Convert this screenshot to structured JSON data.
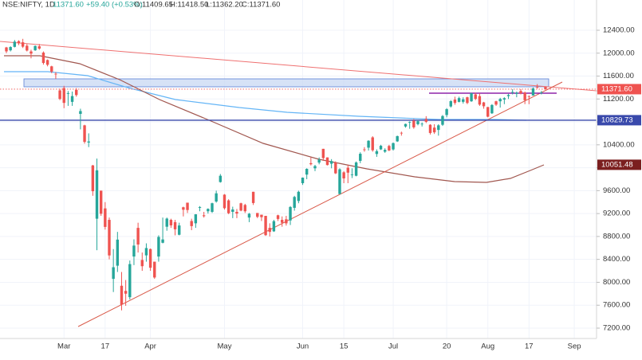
{
  "header": {
    "symbol": "NSE:NIFTY, 1D",
    "last": "11371.60",
    "change": "+59.40 (+0.53%)",
    "open": "O:11409.65",
    "high": "H:11418.50",
    "low": "L:11362.20",
    "close": "C:11371.60"
  },
  "chart_data": {
    "type": "candlestick",
    "categories": [
      null,
      null,
      null,
      null,
      null,
      null,
      null,
      null,
      null,
      null,
      null,
      null,
      null,
      null,
      "Mar",
      null,
      null,
      null,
      null,
      null,
      null,
      null,
      null,
      null,
      "17",
      null,
      null,
      null,
      null,
      null,
      null,
      null,
      null,
      null,
      null,
      "Apr",
      null,
      null,
      null,
      null,
      null,
      null,
      null,
      null,
      null,
      null,
      null,
      null,
      null,
      null,
      null,
      null,
      null,
      "May",
      null,
      null,
      null,
      null,
      null,
      null,
      null,
      null,
      null,
      null,
      null,
      null,
      null,
      null,
      null,
      null,
      null,
      null,
      "Jun",
      null,
      null,
      null,
      null,
      null,
      null,
      null,
      null,
      null,
      "15",
      null,
      null,
      null,
      null,
      null,
      null,
      null,
      null,
      null,
      null,
      null,
      "Jul",
      null,
      null,
      null,
      null,
      null,
      null,
      null,
      null,
      null,
      null,
      null,
      null,
      "20",
      null,
      null,
      null,
      null,
      null,
      null,
      null,
      null,
      null,
      "Aug",
      null,
      null,
      null,
      null,
      null,
      null,
      null,
      null,
      null,
      "17",
      null,
      null,
      null,
      null,
      null,
      null,
      null,
      null,
      null,
      null,
      "Sep",
      null,
      null,
      null,
      null,
      null
    ],
    "open": [
      12100,
      12050,
      12110,
      12210,
      12190,
      12130,
      12030,
      12050,
      12120,
      12010,
      11880,
      11770,
      11640,
      11350,
      11390,
      11290,
      11150,
      11360,
      10940,
      10740,
      10440,
      10040,
      9110,
      9600,
      9290,
      9090,
      8060,
      8290,
      7940,
      7850,
      7740,
      8450,
      8950,
      8390,
      8470,
      8580,
      8360,
      8450,
      8690,
      8970,
      9090,
      9050,
      8830,
      9310,
      9390,
      9070,
      9030,
      9300,
      9170,
      9240,
      9230,
      9410,
      9750,
      9530,
      9430,
      9230,
      9230,
      9380,
      9350,
      9130,
      9580,
      9210,
      9180,
      9160,
      8950,
      8890,
      9170,
      9090,
      9100,
      9080,
      9300,
      9420,
      9730,
      9880,
      10080,
      9990,
      10090,
      10330,
      10180,
      10070,
      10090,
      9540,
      9920,
      10000,
      9880,
      9860,
      10120,
      10320,
      10350,
      10530,
      10240,
      10320,
      10280,
      10380,
      10320,
      10460,
      10610,
      10720,
      10800,
      10820,
      10760,
      10760,
      10850,
      10750,
      10700,
      10660,
      10750,
      10920,
      11070,
      11190,
      11150,
      11150,
      11230,
      11160,
      11280,
      11250,
      11140,
      11060,
      10950,
      11160,
      11160,
      11190,
      11250,
      11320,
      11290,
      11340,
      11310,
      11250,
      11260,
      11410,
      11310,
      11409.65,
      null,
      null,
      null,
      null,
      null,
      null,
      null,
      null,
      null,
      null,
      null,
      null
    ],
    "high": [
      12110,
      12120,
      12230,
      12225,
      12250,
      12160,
      12060,
      12135,
      12160,
      12030,
      11890,
      11780,
      11670,
      11380,
      11430,
      11340,
      11330,
      11390,
      11030,
      10750,
      10600,
      10050,
      10160,
      9600,
      9400,
      9130,
      8580,
      8880,
      8180,
      8040,
      8380,
      8750,
      9040,
      8520,
      8680,
      8590,
      8360,
      8820,
      9130,
      9130,
      9110,
      9090,
      9040,
      9320,
      9390,
      9110,
      9190,
      9330,
      9230,
      9290,
      9390,
      9600,
      9890,
      9540,
      9450,
      9320,
      9280,
      9390,
      9370,
      9210,
      9580,
      9210,
      9180,
      9160,
      9030,
      9090,
      9180,
      9150,
      9160,
      9330,
      9510,
      9600,
      9830,
      9990,
      10180,
      10050,
      10180,
      10330,
      10180,
      10150,
      10110,
      9990,
      9940,
      10050,
      9990,
      10110,
      10270,
      10360,
      10480,
      10550,
      10320,
      10400,
      10340,
      10400,
      10440,
      10560,
      10630,
      10770,
      10810,
      10850,
      10830,
      10790,
      10900,
      10760,
      10760,
      10760,
      10920,
      11040,
      11180,
      11240,
      11240,
      11230,
      11240,
      11310,
      11310,
      11300,
      11150,
      11060,
      11110,
      11170,
      11220,
      11230,
      11290,
      11370,
      11330,
      11370,
      11330,
      11260,
      11400,
      11460,
      11340,
      11418.5,
      null,
      null,
      null,
      null,
      null,
      null,
      null,
      null,
      null,
      null,
      null,
      null
    ],
    "low": [
      12000,
      12030,
      12100,
      12140,
      12090,
      12030,
      11910,
      12040,
      12060,
      11800,
      11770,
      11650,
      11550,
      11180,
      11040,
      11080,
      11080,
      11240,
      10670,
      10420,
      10360,
      9510,
      8560,
      9160,
      8920,
      8400,
      7830,
      8180,
      7510,
      7590,
      7700,
      8300,
      8520,
      8200,
      8360,
      8200,
      8060,
      8360,
      8680,
      8900,
      8950,
      8820,
      8820,
      9150,
      9210,
      8910,
      8950,
      9240,
      9130,
      9200,
      9210,
      9390,
      9740,
      9270,
      9190,
      9120,
      9120,
      9240,
      9210,
      9050,
      9350,
      9120,
      9070,
      8810,
      8800,
      8880,
      9070,
      8970,
      8990,
      9000,
      9250,
      9380,
      9700,
      9800,
      10040,
      9940,
      10060,
      10120,
      10040,
      9990,
      9890,
      9540,
      9730,
      9730,
      9820,
      9850,
      10080,
      10280,
      10300,
      10280,
      10190,
      10310,
      10260,
      10290,
      10300,
      10450,
      10560,
      10700,
      10680,
      10680,
      10740,
      10720,
      10780,
      10580,
      10590,
      10560,
      10730,
      10880,
      11050,
      11100,
      11140,
      11120,
      11110,
      11150,
      11180,
      11080,
      11030,
      10880,
      10940,
      11080,
      11050,
      11110,
      11200,
      11280,
      11230,
      11280,
      11110,
      11110,
      11260,
      11380,
      11280,
      11362.2,
      null,
      null,
      null,
      null,
      null,
      null,
      null,
      null,
      null,
      null,
      null,
      null
    ],
    "close": [
      12031,
      12107,
      12201,
      12174,
      12113,
      12046,
      11992,
      12125,
      12080,
      11829,
      11797,
      11678,
      11633,
      11201,
      11132,
      11303,
      11251,
      11269,
      10989,
      10451,
      10458,
      9590,
      9955,
      9197,
      8967,
      8469,
      8263,
      8745,
      7610,
      7801,
      8318,
      8641,
      8660,
      8281,
      8598,
      8254,
      8084,
      8792,
      8748,
      9112,
      8994,
      8925,
      8992,
      9267,
      9262,
      8981,
      9187,
      9314,
      9154,
      9282,
      9380,
      9553,
      9860,
      9294,
      9206,
      9271,
      9200,
      9252,
      9240,
      9197,
      9384,
      9143,
      9137,
      8823,
      8880,
      9067,
      9106,
      9040,
      9029,
      9315,
      9490,
      9580,
      9827,
      9980,
      10061,
      10029,
      10142,
      10168,
      10047,
      10116,
      9902,
      9973,
      9814,
      9914,
      9882,
      10092,
      10244,
      10312,
      10471,
      10305,
      10289,
      10383,
      10312,
      10302,
      10430,
      10552,
      10607,
      10764,
      10800,
      10705,
      10813,
      10768,
      10802,
      10607,
      10618,
      10740,
      10902,
      11022,
      11162,
      11132,
      11215,
      11194,
      11131,
      11300,
      11202,
      11102,
      11073,
      10891,
      11095,
      11102,
      11200,
      11214,
      11270,
      11322,
      11308,
      11300,
      11178,
      11247,
      11385,
      11408,
      11312,
      11371.6,
      null,
      null,
      null,
      null,
      null,
      null,
      null,
      null,
      null,
      null,
      null,
      null
    ],
    "up_color": "#26a69a",
    "down_color": "#ef5350",
    "ylim": [
      7019,
      12928
    ],
    "yticks": [
      {
        "value": 12400,
        "label": "12400.00"
      },
      {
        "value": 12000,
        "label": "12000.00"
      },
      {
        "value": 11600,
        "label": "11600.00"
      },
      {
        "value": 11200,
        "label": "11200.00"
      },
      {
        "value": 10800,
        "label": "10800.00"
      },
      {
        "value": 10400,
        "label": "10400.00"
      },
      {
        "value": 10000,
        "label": "10000.00"
      },
      {
        "value": 9600,
        "label": "9600.00"
      },
      {
        "value": 9200,
        "label": "9200.00"
      },
      {
        "value": 8800,
        "label": "8800.00"
      },
      {
        "value": 8400,
        "label": "8400.00"
      },
      {
        "value": 8000,
        "label": "8000.00"
      },
      {
        "value": 7600,
        "label": "7600.00"
      },
      {
        "value": 7200,
        "label": "7200.00"
      }
    ],
    "price_labels": [
      {
        "value": 11371.6,
        "label": "11371.60",
        "color": "#ef5350",
        "line": "dotted"
      },
      {
        "value": 10829.73,
        "label": "10829.73",
        "color": "#3949ab",
        "line": "solid"
      },
      {
        "value": 10051.48,
        "label": "10051.48",
        "color": "#7b1f1f",
        "line": "none"
      }
    ],
    "grid": true
  }
}
